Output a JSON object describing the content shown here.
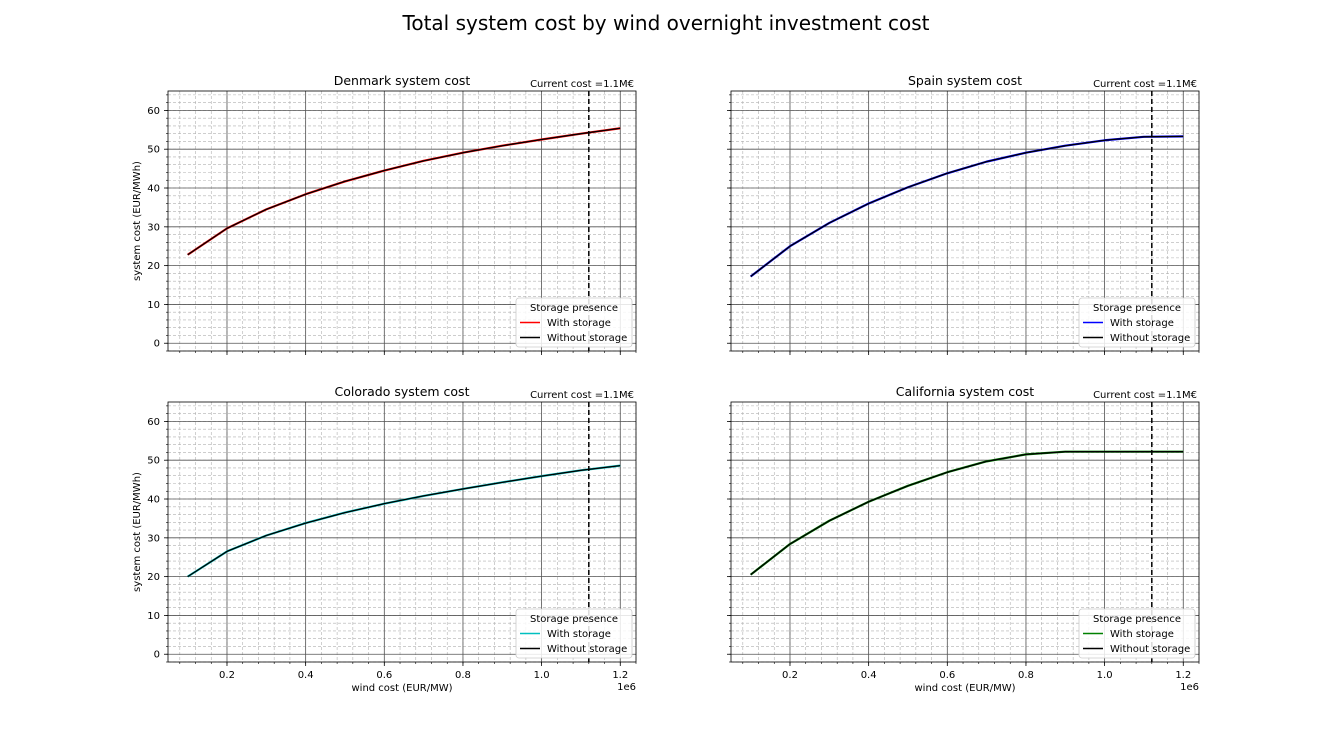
{
  "figure": {
    "suptitle": "Total system cost by wind overnight investment cost"
  },
  "chart_data": [
    {
      "type": "line",
      "title": "Denmark system cost",
      "xlabel": "",
      "ylabel": "system cost (EUR/MWh)",
      "xlim": [
        50000,
        1240000
      ],
      "ylim": [
        -2,
        65
      ],
      "x_offset_label": "",
      "xticks": [
        200000,
        400000,
        600000,
        800000,
        1000000,
        1200000
      ],
      "xtick_labels": [],
      "yticks": [
        0,
        10,
        20,
        30,
        40,
        50,
        60
      ],
      "ytick_labels": [
        "0",
        "10",
        "20",
        "30",
        "40",
        "50",
        "60"
      ],
      "grid": true,
      "legend": {
        "title": "Storage presence",
        "position": "lower right"
      },
      "vline": {
        "x": 1120000,
        "label": "Current cost =1.1M€"
      },
      "x": [
        100000,
        200000,
        300000,
        400000,
        500000,
        600000,
        700000,
        800000,
        900000,
        1000000,
        1100000,
        1200000
      ],
      "series": [
        {
          "name": "With storage",
          "color": "#ff0000",
          "values": [
            22.8,
            29.6,
            34.5,
            38.4,
            41.7,
            44.5,
            47.0,
            49.1,
            50.9,
            52.5,
            54.0,
            55.4
          ]
        },
        {
          "name": "Without storage",
          "color": "#000000",
          "values": [
            22.8,
            29.6,
            34.5,
            38.4,
            41.7,
            44.5,
            47.0,
            49.1,
            50.9,
            52.5,
            54.0,
            55.4
          ]
        }
      ]
    },
    {
      "type": "line",
      "title": "Spain system cost",
      "xlabel": "",
      "ylabel": "",
      "xlim": [
        50000,
        1240000
      ],
      "ylim": [
        -2,
        65
      ],
      "x_offset_label": "",
      "xticks": [
        200000,
        400000,
        600000,
        800000,
        1000000,
        1200000
      ],
      "xtick_labels": [],
      "yticks": [
        0,
        10,
        20,
        30,
        40,
        50,
        60
      ],
      "ytick_labels": [],
      "grid": true,
      "legend": {
        "title": "Storage presence",
        "position": "lower right"
      },
      "vline": {
        "x": 1120000,
        "label": "Current cost =1.1M€"
      },
      "x": [
        100000,
        200000,
        300000,
        400000,
        500000,
        600000,
        700000,
        800000,
        900000,
        1000000,
        1100000,
        1200000
      ],
      "series": [
        {
          "name": "With storage",
          "color": "#0000ff",
          "values": [
            17.2,
            25.0,
            31.0,
            36.0,
            40.2,
            43.8,
            46.8,
            49.1,
            50.9,
            52.3,
            53.2,
            53.3
          ]
        },
        {
          "name": "Without storage",
          "color": "#000000",
          "values": [
            17.2,
            25.0,
            31.0,
            36.0,
            40.2,
            43.8,
            46.8,
            49.1,
            50.9,
            52.3,
            53.2,
            53.3
          ]
        }
      ]
    },
    {
      "type": "line",
      "title": "Colorado system cost",
      "xlabel": "wind cost (EUR/MW)",
      "ylabel": "system cost (EUR/MWh)",
      "xlim": [
        50000,
        1240000
      ],
      "ylim": [
        -2,
        65
      ],
      "x_offset_label": "1e6",
      "xticks": [
        200000,
        400000,
        600000,
        800000,
        1000000,
        1200000
      ],
      "xtick_labels": [
        "0.2",
        "0.4",
        "0.6",
        "0.8",
        "1.0",
        "1.2"
      ],
      "yticks": [
        0,
        10,
        20,
        30,
        40,
        50,
        60
      ],
      "ytick_labels": [
        "0",
        "10",
        "20",
        "30",
        "40",
        "50",
        "60"
      ],
      "grid": true,
      "legend": {
        "title": "Storage presence",
        "position": "lower right"
      },
      "vline": {
        "x": 1120000,
        "label": "Current cost =1.1M€"
      },
      "x": [
        100000,
        200000,
        300000,
        400000,
        500000,
        600000,
        700000,
        800000,
        900000,
        1000000,
        1100000,
        1200000
      ],
      "series": [
        {
          "name": "With storage",
          "color": "#00bfbf",
          "values": [
            20.0,
            26.5,
            30.6,
            33.8,
            36.5,
            38.8,
            40.8,
            42.6,
            44.3,
            45.9,
            47.4,
            48.6
          ]
        },
        {
          "name": "Without storage",
          "color": "#000000",
          "values": [
            20.0,
            26.5,
            30.6,
            33.8,
            36.5,
            38.8,
            40.8,
            42.6,
            44.3,
            45.9,
            47.4,
            48.6
          ]
        }
      ]
    },
    {
      "type": "line",
      "title": "California system cost",
      "xlabel": "wind cost (EUR/MW)",
      "ylabel": "",
      "xlim": [
        50000,
        1240000
      ],
      "ylim": [
        -2,
        65
      ],
      "x_offset_label": "1e6",
      "xticks": [
        200000,
        400000,
        600000,
        800000,
        1000000,
        1200000
      ],
      "xtick_labels": [
        "0.2",
        "0.4",
        "0.6",
        "0.8",
        "1.0",
        "1.2"
      ],
      "yticks": [
        0,
        10,
        20,
        30,
        40,
        50,
        60
      ],
      "ytick_labels": [],
      "grid": true,
      "legend": {
        "title": "Storage presence",
        "position": "lower right"
      },
      "vline": {
        "x": 1120000,
        "label": "Current cost =1.1M€"
      },
      "x": [
        100000,
        200000,
        300000,
        400000,
        500000,
        600000,
        700000,
        800000,
        900000,
        1000000,
        1100000,
        1200000
      ],
      "series": [
        {
          "name": "With storage",
          "color": "#008000",
          "values": [
            20.5,
            28.4,
            34.4,
            39.3,
            43.4,
            46.9,
            49.7,
            51.5,
            52.2,
            52.2,
            52.2,
            52.2
          ]
        },
        {
          "name": "Without storage",
          "color": "#000000",
          "values": [
            20.5,
            28.4,
            34.4,
            39.3,
            43.4,
            46.9,
            49.7,
            51.5,
            52.2,
            52.2,
            52.2,
            52.2
          ]
        }
      ]
    }
  ]
}
